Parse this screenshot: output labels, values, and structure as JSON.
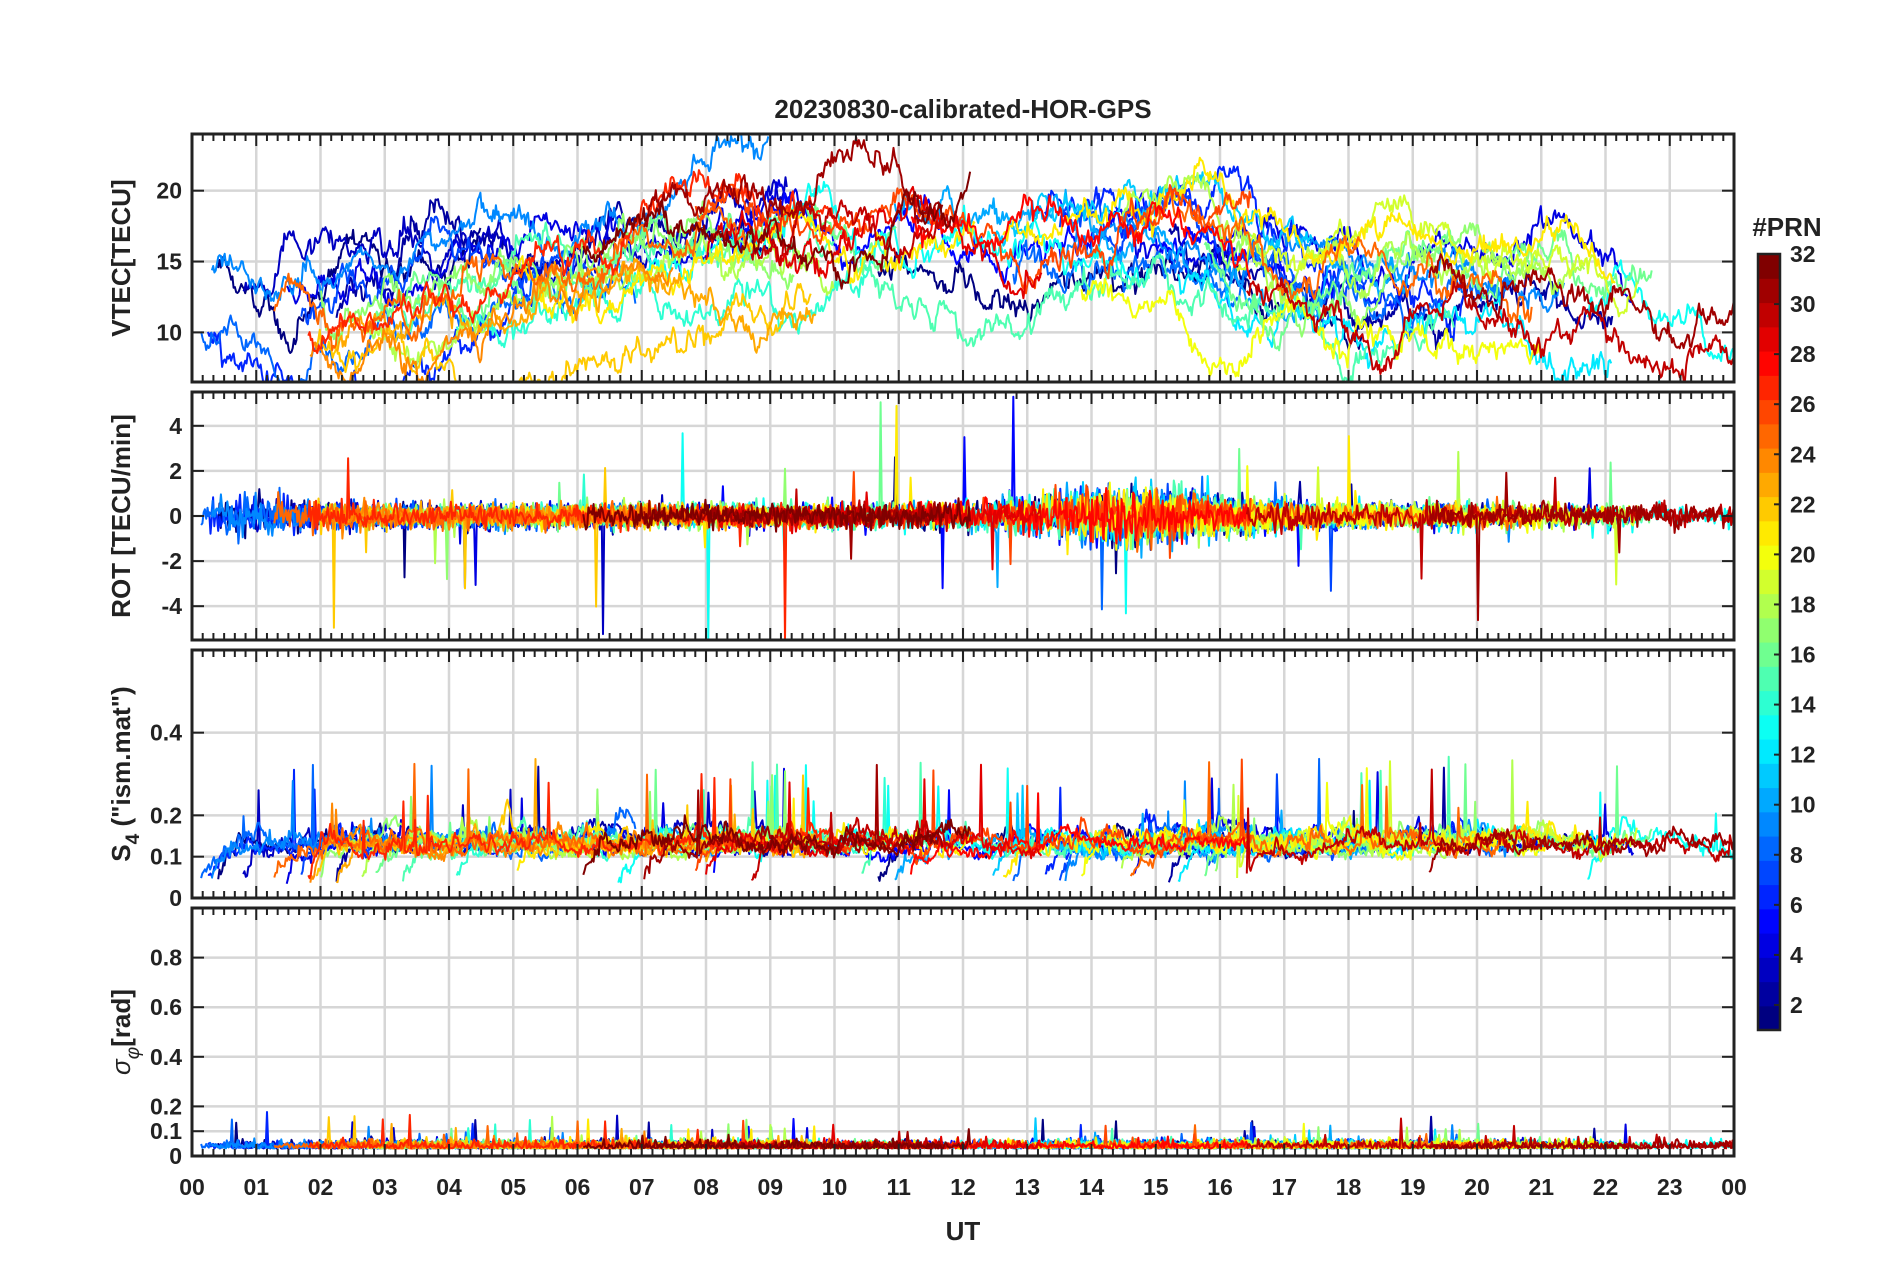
{
  "figure": {
    "title": "20230830-calibrated-HOR-GPS",
    "xlabel": "UT"
  },
  "colorbar": {
    "title": "#PRN",
    "ticks": [
      "2",
      "4",
      "6",
      "8",
      "10",
      "12",
      "14",
      "16",
      "18",
      "20",
      "22",
      "24",
      "26",
      "28",
      "30",
      "32"
    ],
    "range": [
      1,
      32
    ]
  },
  "chart_data": [
    {
      "type": "line",
      "panel": "vtec",
      "ylabel": "VTEC[TECU]",
      "ylim": [
        6.5,
        24
      ],
      "yticks": [
        "10",
        "15",
        "20"
      ],
      "ytick_values": [
        10,
        15,
        20
      ],
      "xlim": [
        0,
        24
      ],
      "xtick_labels": [
        "00",
        "01",
        "02",
        "03",
        "04",
        "05",
        "06",
        "07",
        "08",
        "09",
        "10",
        "11",
        "12",
        "13",
        "14",
        "15",
        "16",
        "17",
        "18",
        "19",
        "20",
        "21",
        "22",
        "23",
        "00"
      ],
      "series_count": 32,
      "color_by": "PRN"
    },
    {
      "type": "line",
      "panel": "rot",
      "ylabel": "ROT [TECU/min]",
      "ylim": [
        -5.5,
        5.5
      ],
      "yticks": [
        "-4",
        "-2",
        "0",
        "2",
        "4"
      ],
      "ytick_values": [
        -4,
        -2,
        0,
        2,
        4
      ],
      "xlim": [
        0,
        24
      ],
      "series_count": 32,
      "color_by": "PRN"
    },
    {
      "type": "line",
      "panel": "s4",
      "ylabel_main": "S",
      "ylabel_sub": "4",
      "ylabel_rest": " (\"ism.mat\")",
      "ylim": [
        0,
        0.6
      ],
      "yticks": [
        "0",
        "0.1",
        "0.2",
        "0.4"
      ],
      "ytick_values": [
        0,
        0.1,
        0.2,
        0.4
      ],
      "xlim": [
        0,
        24
      ],
      "series_count": 32,
      "color_by": "PRN"
    },
    {
      "type": "line",
      "panel": "sigma_phi",
      "ylabel_main": "σ",
      "ylabel_sub": "φ",
      "ylabel_rest": "[rad]",
      "ylim": [
        0,
        1
      ],
      "yticks": [
        "0",
        "0.1",
        "0.2",
        "0.4",
        "0.6",
        "0.8"
      ],
      "ytick_values": [
        0,
        0.1,
        0.2,
        0.4,
        0.6,
        0.8
      ],
      "xlim": [
        0,
        24
      ],
      "series_count": 32,
      "color_by": "PRN"
    }
  ]
}
